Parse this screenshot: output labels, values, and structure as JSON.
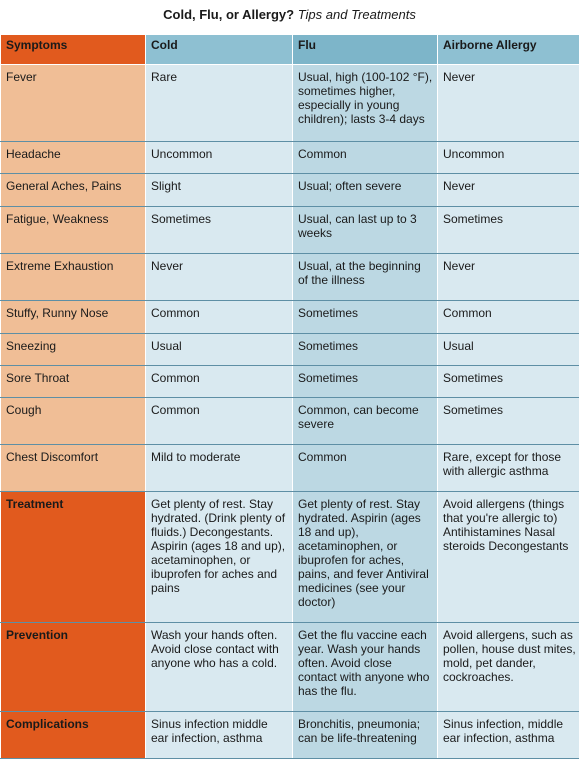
{
  "title": {
    "main": "Cold, Flu, or Allergy?",
    "sub": "Tips and Treatments"
  },
  "headers": [
    "Symptoms",
    "Cold",
    "Flu",
    "Airborne Allergy"
  ],
  "rows": [
    {
      "label": "Fever",
      "cold": "Rare",
      "flu": "Usual, high (100-102 °F), sometimes higher, especially in young children); lasts 3-4 days",
      "allergy": "Never",
      "h": 77
    },
    {
      "label": "Headache",
      "cold": "Uncommon",
      "flu": "Common",
      "allergy": "Uncommon",
      "h": 32
    },
    {
      "label": "General Aches, Pains",
      "cold": "Slight",
      "flu": "Usual; often severe",
      "allergy": "Never",
      "h": 33
    },
    {
      "label": "Fatigue, Weakness",
      "cold": "Sometimes",
      "flu": "Usual, can last up to 3 weeks",
      "allergy": "Sometimes",
      "h": 47
    },
    {
      "label": "Extreme Exhaustion",
      "cold": "Never",
      "flu": "Usual, at the beginning of the illness",
      "allergy": "Never",
      "h": 47
    },
    {
      "label": "Stuffy, Runny Nose",
      "cold": "Common",
      "flu": "Sometimes",
      "allergy": "Common",
      "h": 33
    },
    {
      "label": "Sneezing",
      "cold": "Usual",
      "flu": "Sometimes",
      "allergy": "Usual",
      "h": 32
    },
    {
      "label": "Sore Throat",
      "cold": "Common",
      "flu": "Sometimes",
      "allergy": "Sometimes",
      "h": 32
    },
    {
      "label": "Cough",
      "cold": "Common",
      "flu": "Common, can become severe",
      "allergy": "Sometimes",
      "h": 47
    },
    {
      "label": "Chest Discomfort",
      "cold": "Mild to moderate",
      "flu": "Common",
      "allergy": "Rare, except for those with allergic asthma",
      "h": 47
    }
  ],
  "sections": [
    {
      "label": "Treatment",
      "cold": "Get plenty of rest. Stay hydrated. (Drink plenty of fluids.) Decongestants.  Aspirin (ages 18 and up), acetaminophen, or ibuprofen for aches and pains",
      "flu": "Get plenty of rest. Stay hydrated.  Aspirin (ages 18 and up), acetaminophen, or ibuprofen for aches, pains, and fever  Antiviral medicines (see your doctor)",
      "allergy": "Avoid allergens (things that you're allergic to) Antihistamines  Nasal steroids  Decongestants",
      "h": 131
    },
    {
      "label": "Prevention",
      "cold": "Wash your hands often. Avoid close contact with anyone who has a cold.",
      "flu": "Get the flu vaccine each year.  Wash your hands often. Avoid close contact with anyone who has the flu.",
      "allergy": "Avoid allergens, such as pollen, house dust mites, mold, pet dander, cockroaches.",
      "h": 89
    },
    {
      "label": "Complications",
      "cold": "Sinus infection middle ear infection, asthma",
      "flu": "Bronchitis, pneumonia; can be life-threatening",
      "allergy": "Sinus infection, middle ear infection, asthma",
      "h": 47
    }
  ],
  "colors": {
    "orange": "#e15a1e",
    "peach": "#f0be96",
    "header_blue": "#8ec0d2",
    "light_blue": "#d9e9f0",
    "mid_blue": "#bcd8e3"
  }
}
